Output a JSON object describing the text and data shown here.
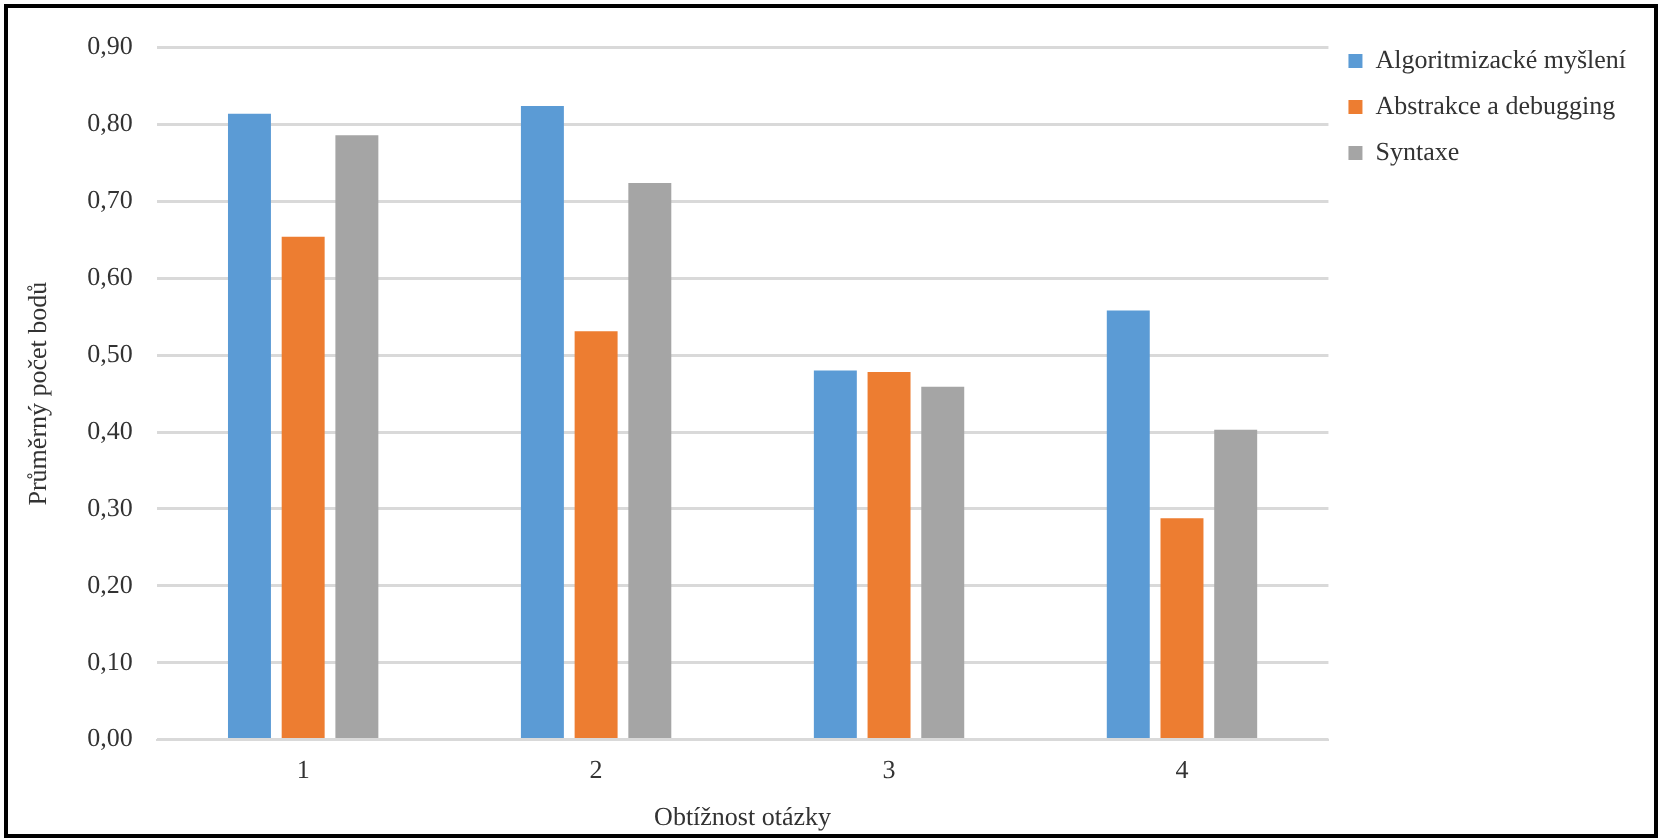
{
  "chart_data": {
    "type": "bar",
    "xlabel": "Obtížnost otázky",
    "ylabel": "Průměrný počet bodů",
    "categories": [
      "1",
      "2",
      "3",
      "4"
    ],
    "series": [
      {
        "name": "Algoritmizacké myšlení",
        "color": "#5b9bd5",
        "values": [
          0.814,
          0.824,
          0.48,
          0.558
        ]
      },
      {
        "name": "Abstrakce a debugging",
        "color": "#ed7d31",
        "values": [
          0.654,
          0.531,
          0.478,
          0.288
        ]
      },
      {
        "name": "Syntaxe",
        "color": "#a5a5a5",
        "values": [
          0.786,
          0.724,
          0.459,
          0.403
        ]
      }
    ],
    "ylim": [
      0,
      0.9
    ],
    "yticks": [
      {
        "value": 0,
        "label": "0,00"
      },
      {
        "value": 0.1,
        "label": "0,10"
      },
      {
        "value": 0.2,
        "label": "0,20"
      },
      {
        "value": 0.3,
        "label": "0,30"
      },
      {
        "value": 0.4,
        "label": "0,40"
      },
      {
        "value": 0.5,
        "label": "0,50"
      },
      {
        "value": 0.6,
        "label": "0,60"
      },
      {
        "value": 0.7,
        "label": "0,70"
      },
      {
        "value": 0.8,
        "label": "0,80"
      },
      {
        "value": 0.9,
        "label": "0,90"
      }
    ],
    "grid": "y",
    "legend": "top right"
  }
}
